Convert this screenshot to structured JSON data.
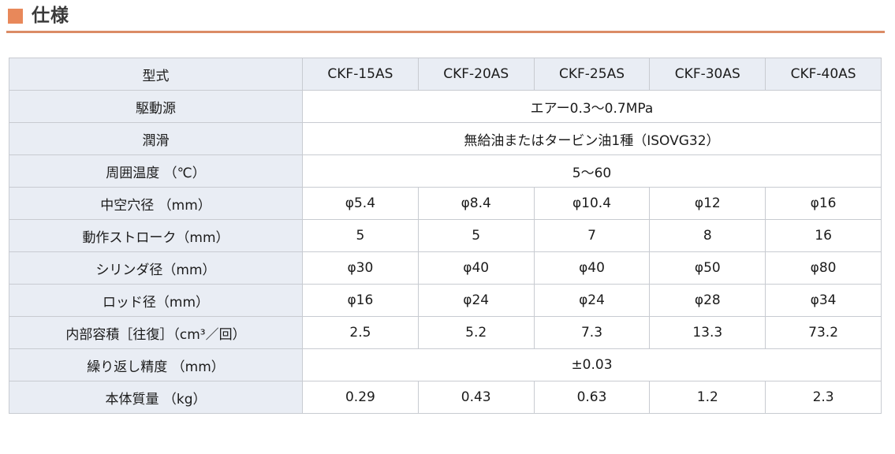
{
  "page": {
    "section_title": "仕様",
    "accent_square_color": "#E8885A",
    "accent_rule_color": "#DB8C66",
    "header_cell_bg_color": "#E9EDF4",
    "table_border_color": "#C8CBD1"
  },
  "table": {
    "header": {
      "label": "型式",
      "models": [
        "CKF-15AS",
        "CKF-20AS",
        "CKF-25AS",
        "CKF-30AS",
        "CKF-40AS"
      ]
    },
    "rows": [
      {
        "label": "駆動源",
        "type": "merged",
        "value": "エアー0.3～0.7MPa"
      },
      {
        "label": "潤滑",
        "type": "merged",
        "value": "無給油またはタービン油1種（ISOVG32）"
      },
      {
        "label": "周囲温度 （℃）",
        "type": "merged",
        "value": "5～60"
      },
      {
        "label": "中空穴径 （mm）",
        "type": "per-model",
        "values": [
          "φ5.4",
          "φ8.4",
          "φ10.4",
          "φ12",
          "φ16"
        ]
      },
      {
        "label": "動作ストローク（mm）",
        "type": "per-model",
        "values": [
          "5",
          "5",
          "7",
          "8",
          "16"
        ]
      },
      {
        "label": "シリンダ径（mm）",
        "type": "per-model",
        "values": [
          "φ30",
          "φ40",
          "φ40",
          "φ50",
          "φ80"
        ]
      },
      {
        "label": "ロッド径（mm）",
        "type": "per-model",
        "values": [
          "φ16",
          "φ24",
          "φ24",
          "φ28",
          "φ34"
        ]
      },
      {
        "label": "内部容積［往復］（cm³／回）",
        "type": "per-model",
        "values": [
          "2.5",
          "5.2",
          "7.3",
          "13.3",
          "73.2"
        ]
      },
      {
        "label": "繰り返し精度 （mm）",
        "type": "merged",
        "value": "±0.03"
      },
      {
        "label": "本体質量 （kg）",
        "type": "per-model",
        "values": [
          "0.29",
          "0.43",
          "0.63",
          "1.2",
          "2.3"
        ]
      }
    ]
  }
}
